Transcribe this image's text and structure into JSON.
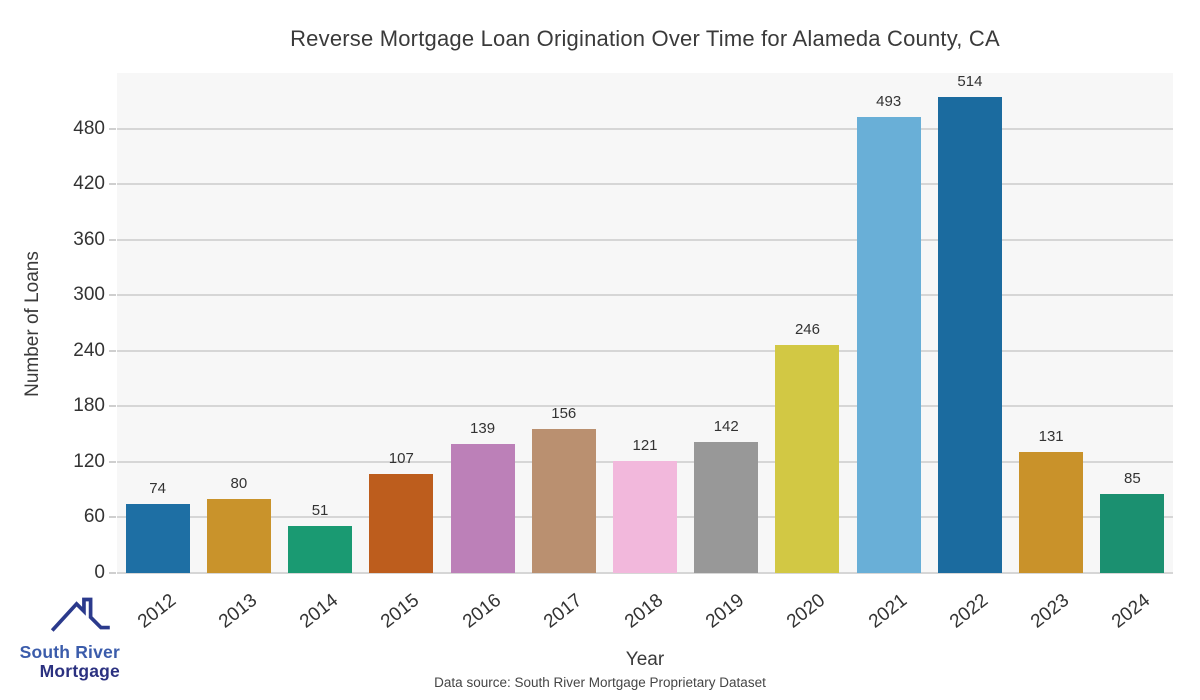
{
  "chart_data": {
    "type": "bar",
    "title": "Reverse Mortgage Loan Origination Over Time for Alameda County, CA",
    "xlabel": "Year",
    "ylabel": "Number of Loans",
    "categories": [
      "2012",
      "2013",
      "2014",
      "2015",
      "2016",
      "2017",
      "2018",
      "2019",
      "2020",
      "2021",
      "2022",
      "2023",
      "2024"
    ],
    "values": [
      74,
      80,
      51,
      107,
      139,
      156,
      121,
      142,
      246,
      493,
      514,
      131,
      85
    ],
    "bar_colors": [
      "#1e6fa4",
      "#c9932b",
      "#1a9a72",
      "#bd5d1d",
      "#bc80b8",
      "#ba9070",
      "#f2b8dc",
      "#989898",
      "#d2c844",
      "#69afd7",
      "#1b6b9f",
      "#c9922a",
      "#1b9070"
    ],
    "ylim": [
      0,
      540
    ],
    "yticks": [
      0,
      60,
      120,
      180,
      240,
      300,
      360,
      420,
      480
    ],
    "grid": true,
    "legend": "none",
    "value_labels": true,
    "plot_bg": "#f7f7f7",
    "gridline_color": "#d6d6d6"
  },
  "footer": {
    "data_source": "Data source: South River Mortgage Proprietary Dataset"
  },
  "logo": {
    "icon": "house-roof-icon",
    "line1": "South River",
    "line2": "Mortgage",
    "line1_color": "#3b5cab",
    "line2_color": "#2b3180",
    "icon_color": "#2b3a8c"
  }
}
